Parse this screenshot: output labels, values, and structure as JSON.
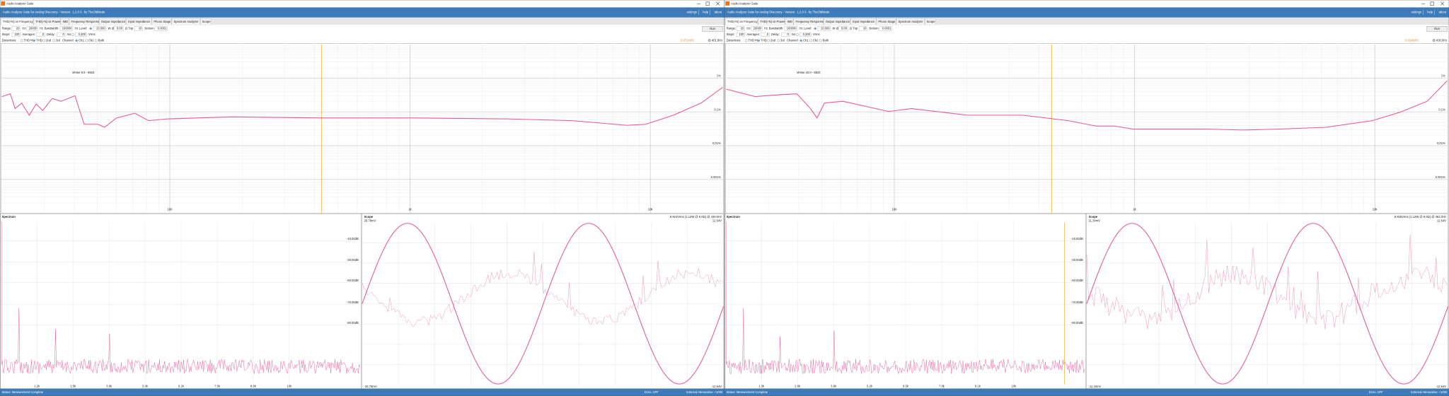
{
  "windows": [
    {
      "window_title": "Audio Analyzer Suite",
      "app_title": "Audio Analyzer Suite for Analog Discovery - Version : 1.2.0.3 - by TheOldMode",
      "menu": [
        "settings",
        "help",
        "about"
      ],
      "tabs": [
        "THD(+N) vs Frequency",
        "THD(+N) vs Power",
        "IMD",
        "Frequency Response",
        "Output Impedance",
        "Input Impedance",
        "Phono Stage",
        "Spectrum Analyzer",
        "Scope"
      ],
      "controls": [
        [
          {
            "t": "Range:"
          },
          {
            "i": "20"
          },
          {
            "t": "Hz"
          },
          {
            "i": "20000"
          },
          {
            "t": "Hz"
          },
          {
            "t": "Bandwidth:"
          },
          {
            "i": "100000"
          },
          {
            "t": "Hz"
          },
          {
            "t": "Level:"
          },
          {
            "o": true
          },
          {
            "i": "10.000"
          },
          {
            "t": "W @"
          },
          {
            "i": "8.00"
          },
          {
            "t": "Ω"
          },
          {
            "t": "Top"
          },
          {
            "i": "10"
          },
          {
            "t": "Bottom"
          },
          {
            "i": "0.0001"
          }
        ],
        [
          {
            "t": "Steps:"
          },
          {
            "i": "100"
          },
          {
            "t": "Averages:"
          },
          {
            "i": "2"
          },
          {
            "t": "Delay:"
          },
          {
            "i": "0"
          },
          {
            "t": "ms"
          },
          {
            "o": false
          },
          {
            "i": "0.200"
          },
          {
            "t": "Vrms"
          }
        ],
        [
          {
            "t": "Distortions:"
          },
          {
            "r": "THD+N",
            "o": false
          },
          {
            "r": "THD",
            "o": true
          },
          {
            "r": "2nd",
            "o": false
          },
          {
            "r": "3rd",
            "o": false
          },
          {
            "t": "Channel:"
          },
          {
            "r": "Ch1",
            "o": true
          },
          {
            "r": "Ch2",
            "o": false
          },
          {
            "r": "Both",
            "o": false
          }
        ]
      ],
      "run": "Run",
      "reading": "0.07243%",
      "reading_freq": "@ 401.8Hz",
      "overlay": "Versie 8.0 - 6922",
      "thd_chart": {
        "type": "line",
        "log_x": true,
        "log_y": true,
        "color": "#e8559a",
        "xlim": [
          20,
          20000
        ],
        "ylim": [
          0.0001,
          10
        ],
        "xticks": [
          100,
          {
            "value": 1000,
            "label": "1k"
          },
          {
            "value": 10000,
            "label": "10k"
          }
        ],
        "yticks": [
          {
            "value": 1,
            "label": "1%"
          },
          {
            "value": 0.1,
            "label": "0.1%"
          },
          {
            "value": 0.01,
            "label": "0.01%"
          },
          {
            "value": 0.001,
            "label": "0.001%"
          }
        ],
        "x": [
          20,
          21.7,
          22.7,
          24.2,
          26,
          27.8,
          29.6,
          32.4,
          35.3,
          40.3,
          44,
          50.2,
          53.5,
          60,
          71.5,
          81.7,
          97.5,
          180.7,
          436,
          1054,
          2547,
          4721,
          8017,
          9570,
          12470,
          16250,
          20000
        ],
        "values": [
          0.283,
          0.342,
          0.125,
          0.182,
          0.08,
          0.171,
          0.11,
          0.25,
          0.206,
          0.3,
          0.043,
          0.043,
          0.035,
          0.066,
          0.091,
          0.055,
          0.062,
          0.071,
          0.066,
          0.066,
          0.062,
          0.055,
          0.04,
          0.043,
          0.08,
          0.182,
          0.53
        ]
      },
      "spectrum": {
        "title": "Spectrum",
        "y_labels": [
          "-10.00dB",
          "-30.00dB",
          "-50.00dB",
          "-70.00dB",
          "-90.00dB"
        ],
        "x_labels": [
          "1.2k",
          "2.5k",
          "3.8k",
          "5.0k",
          "6.2k",
          "7.5k",
          "8.8k",
          "10k"
        ]
      },
      "scope": {
        "title": "Scope",
        "reading": "8.924Vrms (1.12W @ 8.0Ω) @ 430.0Hz",
        "top_left": "26.78mV",
        "top_right": "12.64V",
        "bottom_left": "-26.78mV",
        "bottom_right": "-12.64V"
      },
      "status": "Status: Measurement Complete",
      "status_right": [
        "DULL OFF",
        "External Attenuation: +1000"
      ]
    },
    {
      "window_title": "Audio Analyzer Suite",
      "app_title": "Audio Analyzer Suite for Analog Discovery - Version : 1.2.0.3 - by TheOldMode",
      "menu": [
        "settings",
        "help",
        "about"
      ],
      "tabs": [
        "THD(+N) vs Frequency",
        "THD(+N) vs Power",
        "IMD",
        "Frequency Response",
        "Output Impedance",
        "Input Impedance",
        "Phono Stage",
        "Spectrum Analyzer",
        "Scope"
      ],
      "controls": [
        [
          {
            "t": "Range:"
          },
          {
            "i": "20"
          },
          {
            "t": "Hz"
          },
          {
            "i": "20000"
          },
          {
            "t": "Hz"
          },
          {
            "t": "Bandwidth:"
          },
          {
            "i": "100000"
          },
          {
            "t": "Hz"
          },
          {
            "t": "Level:"
          },
          {
            "o": true
          },
          {
            "i": "10.000"
          },
          {
            "t": "W @"
          },
          {
            "i": "8.00"
          },
          {
            "t": "Ω"
          },
          {
            "t": "Top"
          },
          {
            "i": "10"
          },
          {
            "t": "Bottom"
          },
          {
            "i": "0.0001"
          }
        ],
        [
          {
            "t": "Steps:"
          },
          {
            "i": "100"
          },
          {
            "t": "Averages:"
          },
          {
            "i": "2"
          },
          {
            "t": "Delay:"
          },
          {
            "i": "0"
          },
          {
            "t": "ms"
          },
          {
            "o": false
          },
          {
            "i": "0.200"
          },
          {
            "t": "Vrms"
          }
        ],
        [
          {
            "t": "Distortions:"
          },
          {
            "r": "THD+N",
            "o": false
          },
          {
            "r": "THD",
            "o": true
          },
          {
            "r": "2nd",
            "o": false
          },
          {
            "r": "3rd",
            "o": false
          },
          {
            "t": "Channel:"
          },
          {
            "r": "Ch1",
            "o": true
          },
          {
            "r": "Ch2",
            "o": false
          },
          {
            "r": "Both",
            "o": false
          }
        ]
      ],
      "run": "Run",
      "reading": "0.02484%",
      "reading_freq": "@ 430.0Hz",
      "overlay": "Versie 10.0 - 6922",
      "thd_chart": {
        "type": "line",
        "log_x": true,
        "log_y": true,
        "color": "#e8559a",
        "xlim": [
          20,
          20000
        ],
        "ylim": [
          0.0001,
          10
        ],
        "xticks": [
          100,
          {
            "value": 1000,
            "label": "1k"
          },
          {
            "value": 10000,
            "label": "10k"
          }
        ],
        "yticks": [
          {
            "value": 1,
            "label": "1%"
          },
          {
            "value": 0.1,
            "label": "0.1%"
          },
          {
            "value": 0.01,
            "label": "0.01%"
          },
          {
            "value": 0.001,
            "label": "0.001%"
          }
        ],
        "x": [
          20,
          26.4,
          32.9,
          39.3,
          44.8,
          47.7,
          51.2,
          61,
          94.8,
          118,
          201,
          341,
          530,
          690,
          824,
          982,
          1400,
          1991,
          2832,
          4030,
          6265,
          9750,
          12690,
          16520,
          20000
        ],
        "values": [
          0.47,
          0.283,
          0.32,
          0.342,
          0.125,
          0.066,
          0.182,
          0.206,
          0.103,
          0.125,
          0.08,
          0.08,
          0.055,
          0.038,
          0.038,
          0.031,
          0.031,
          0.031,
          0.029,
          0.031,
          0.035,
          0.055,
          0.097,
          0.206,
          0.83
        ]
      },
      "spectrum": {
        "title": "Spectrum",
        "y_labels": [
          "-10.00dB",
          "-30.00dB",
          "-50.00dB",
          "-70.00dB",
          "-90.00dB"
        ],
        "x_labels": [
          "1.3k",
          "2.6k",
          "3.9k",
          "5.2k",
          "6.5k",
          "7.8k",
          "9.1k",
          "10k"
        ]
      },
      "scope": {
        "title": "Scope",
        "reading": "8.925Vrms (1.12W @ 8.0Ω) @ 462.0Hz",
        "top_left": "11.34mV",
        "top_right": "12.64V",
        "bottom_left": "-11.34mV",
        "bottom_right": "-12.64V"
      },
      "status": "Status: Measurement Complete",
      "status_right": [
        "DULL OFF",
        "External Attenuation: +1000"
      ]
    }
  ]
}
